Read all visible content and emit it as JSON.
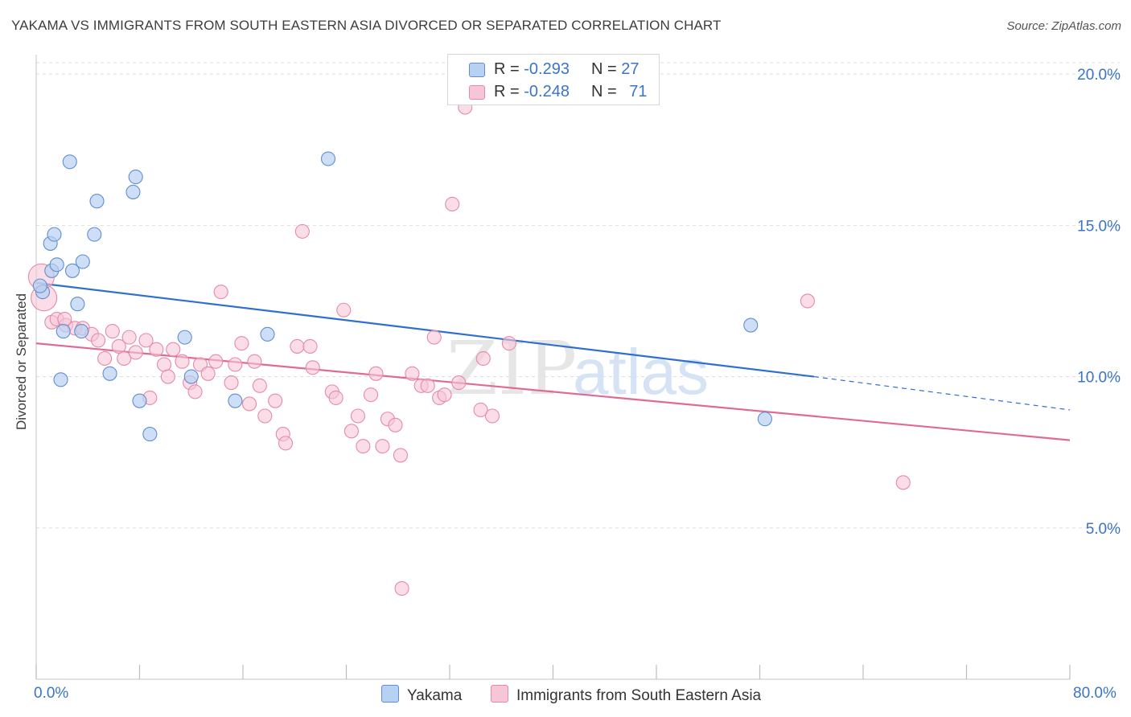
{
  "header": {
    "title": "YAKAMA VS IMMIGRANTS FROM SOUTH EASTERN ASIA DIVORCED OR SEPARATED CORRELATION CHART",
    "source": "Source: ZipAtlas.com"
  },
  "legend_top": {
    "rows": [
      {
        "r_label": "R =",
        "r_value": "-0.293",
        "n_label": "N =",
        "n_value": "27"
      },
      {
        "r_label": "R =",
        "r_value": "-0.248",
        "n_label": "N =",
        "n_value": "71"
      }
    ]
  },
  "legend_bottom": {
    "items": [
      "Yakama",
      "Immigrants from South Eastern Asia"
    ]
  },
  "watermark": {
    "zip": "ZIP",
    "atlas": "atlas"
  },
  "colors": {
    "yakama_fill": "#b8d0f2",
    "yakama_stroke": "#5f8fd0",
    "yakama_line": "#2f6fd0",
    "sea_fill": "#f7c6d6",
    "sea_stroke": "#e68aa8",
    "sea_line": "#e06a95",
    "accent_text": "#3a74c8",
    "grid": "#dddddd"
  },
  "chart_data": {
    "type": "scatter",
    "title": "YAKAMA VS IMMIGRANTS FROM SOUTH EASTERN ASIA DIVORCED OR SEPARATED CORRELATION CHART",
    "xlabel": "",
    "ylabel": "Divorced or Separated",
    "xlim": [
      0,
      80
    ],
    "ylim": [
      0,
      20.8
    ],
    "x_tick_labels": [
      "0.0%",
      "80.0%"
    ],
    "y_ticks": [
      5,
      10,
      15,
      20
    ],
    "y_tick_labels": [
      "5.0%",
      "10.0%",
      "15.0%",
      "20.0%"
    ],
    "grid": "horizontal dashed",
    "legend_position": "top-center",
    "series": [
      {
        "name": "Yakama",
        "R": -0.293,
        "N": 27,
        "trend": {
          "x0": 0.0,
          "y0": 13.1,
          "x1": 60.2,
          "y1": 10.0,
          "dashed_to_x": 80.0,
          "dashed_to_y": 8.9
        },
        "points": [
          [
            0.5,
            12.8
          ],
          [
            1.1,
            14.4
          ],
          [
            1.2,
            13.5
          ],
          [
            1.4,
            14.7
          ],
          [
            1.6,
            13.7
          ],
          [
            1.9,
            9.9
          ],
          [
            2.1,
            11.5
          ],
          [
            2.6,
            17.1
          ],
          [
            2.8,
            13.5
          ],
          [
            3.2,
            12.4
          ],
          [
            3.5,
            11.5
          ],
          [
            3.6,
            13.8
          ],
          [
            4.5,
            14.7
          ],
          [
            4.7,
            15.8
          ],
          [
            5.7,
            10.1
          ],
          [
            7.5,
            16.1
          ],
          [
            7.7,
            16.6
          ],
          [
            8.0,
            9.2
          ],
          [
            8.8,
            8.1
          ],
          [
            11.5,
            11.3
          ],
          [
            12.0,
            10.0
          ],
          [
            15.4,
            9.2
          ],
          [
            17.9,
            11.4
          ],
          [
            22.6,
            17.2
          ],
          [
            55.3,
            11.7
          ],
          [
            56.4,
            8.6
          ],
          [
            0.3,
            13.0
          ]
        ]
      },
      {
        "name": "Immigrants from South Eastern Asia",
        "R": -0.248,
        "N": 71,
        "trend": {
          "x0": 0.0,
          "y0": 11.1,
          "x1": 80.0,
          "y1": 7.9
        },
        "points": [
          [
            0.4,
            13.3
          ],
          [
            0.6,
            12.6
          ],
          [
            1.2,
            11.8
          ],
          [
            1.6,
            11.9
          ],
          [
            2.3,
            11.7
          ],
          [
            3.0,
            11.6
          ],
          [
            3.6,
            11.6
          ],
          [
            4.3,
            11.4
          ],
          [
            4.8,
            11.2
          ],
          [
            5.3,
            10.6
          ],
          [
            5.9,
            11.5
          ],
          [
            6.4,
            11.0
          ],
          [
            6.8,
            10.6
          ],
          [
            7.2,
            11.3
          ],
          [
            7.7,
            10.8
          ],
          [
            8.5,
            11.2
          ],
          [
            8.8,
            9.3
          ],
          [
            9.3,
            10.9
          ],
          [
            9.9,
            10.4
          ],
          [
            10.2,
            10.0
          ],
          [
            10.6,
            10.9
          ],
          [
            11.3,
            10.5
          ],
          [
            11.9,
            9.8
          ],
          [
            12.3,
            9.5
          ],
          [
            12.7,
            10.4
          ],
          [
            13.3,
            10.1
          ],
          [
            13.9,
            10.5
          ],
          [
            14.3,
            12.8
          ],
          [
            15.1,
            9.8
          ],
          [
            15.4,
            10.4
          ],
          [
            15.9,
            11.1
          ],
          [
            16.5,
            9.1
          ],
          [
            16.9,
            10.5
          ],
          [
            17.3,
            9.7
          ],
          [
            17.7,
            8.7
          ],
          [
            18.5,
            9.2
          ],
          [
            19.1,
            8.1
          ],
          [
            19.3,
            7.8
          ],
          [
            20.2,
            11.0
          ],
          [
            20.6,
            14.8
          ],
          [
            21.2,
            11.0
          ],
          [
            21.4,
            10.3
          ],
          [
            22.9,
            9.5
          ],
          [
            23.2,
            9.3
          ],
          [
            23.8,
            12.2
          ],
          [
            24.4,
            8.2
          ],
          [
            24.9,
            8.7
          ],
          [
            25.3,
            7.7
          ],
          [
            25.9,
            9.4
          ],
          [
            26.3,
            10.1
          ],
          [
            26.8,
            7.7
          ],
          [
            27.2,
            8.6
          ],
          [
            27.8,
            8.4
          ],
          [
            28.2,
            7.4
          ],
          [
            29.1,
            10.1
          ],
          [
            29.8,
            9.7
          ],
          [
            30.3,
            9.7
          ],
          [
            30.8,
            11.3
          ],
          [
            31.2,
            9.3
          ],
          [
            31.6,
            9.4
          ],
          [
            32.2,
            15.7
          ],
          [
            32.7,
            9.8
          ],
          [
            33.2,
            18.9
          ],
          [
            34.4,
            8.9
          ],
          [
            34.6,
            10.6
          ],
          [
            35.3,
            8.7
          ],
          [
            36.6,
            11.1
          ],
          [
            59.7,
            12.5
          ],
          [
            67.1,
            6.5
          ],
          [
            28.3,
            3.0
          ],
          [
            2.2,
            11.9
          ]
        ]
      }
    ]
  }
}
